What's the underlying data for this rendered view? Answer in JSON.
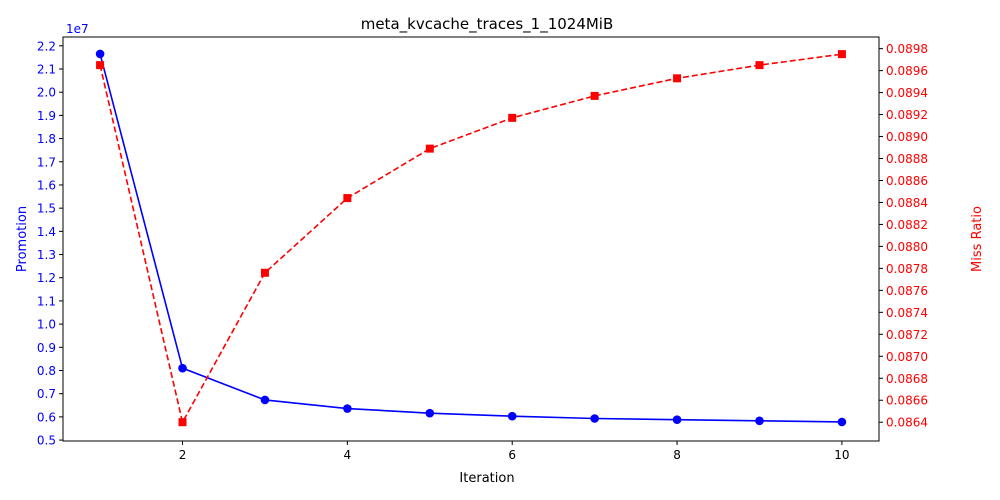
{
  "chart_data": {
    "type": "line",
    "title": "meta_kvcache_traces_1_1024MiB",
    "xlabel": "Iteration",
    "ylabel_left": "Promotion",
    "ylabel_right": "Miss Ratio",
    "left_offset_text": "1e7",
    "x": [
      1,
      2,
      3,
      4,
      5,
      6,
      7,
      8,
      9,
      10
    ],
    "xlim": [
      0.55,
      10.45
    ],
    "xticks": [
      "2",
      "4",
      "6",
      "8",
      "10"
    ],
    "ylim_left": [
      0.496,
      2.238
    ],
    "yticks_left": [
      "0.5",
      "0.6",
      "0.7",
      "0.8",
      "0.9",
      "1.0",
      "1.1",
      "1.2",
      "1.3",
      "1.4",
      "1.5",
      "1.6",
      "1.7",
      "1.8",
      "1.9",
      "2.0",
      "2.1",
      "2.2"
    ],
    "ylim_right": [
      0.086229,
      0.089906
    ],
    "yticks_right": [
      "0.0864",
      "0.0866",
      "0.0868",
      "0.0870",
      "0.0872",
      "0.0874",
      "0.0876",
      "0.0878",
      "0.0880",
      "0.0882",
      "0.0884",
      "0.0886",
      "0.0888",
      "0.0890",
      "0.0892",
      "0.0894",
      "0.0896",
      "0.0898"
    ],
    "series": [
      {
        "axis": "left",
        "values": [
          2.165,
          0.81,
          0.673,
          0.636,
          0.616,
          0.603,
          0.593,
          0.588,
          0.583,
          0.578
        ],
        "color": "#0000ff",
        "linestyle": "solid",
        "marker": "circle"
      },
      {
        "axis": "right",
        "values": [
          0.08965,
          0.0864,
          0.08776,
          0.08844,
          0.08889,
          0.08917,
          0.08937,
          0.08953,
          0.08965,
          0.08975
        ],
        "color": "#ff0000",
        "linestyle": "dashed",
        "marker": "square"
      }
    ],
    "colors": {
      "left_axis": "#0000ff",
      "right_axis": "#ff0000",
      "text": "#000000"
    },
    "grid": false
  }
}
